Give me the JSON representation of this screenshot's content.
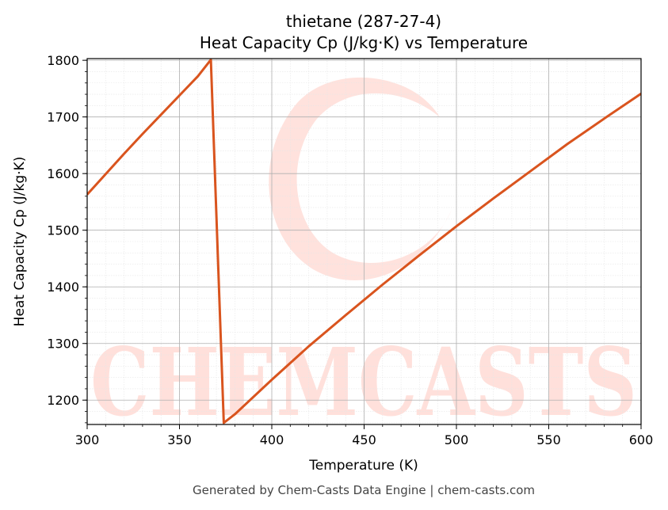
{
  "chart_data": {
    "type": "line",
    "title": "thietane (287-27-4)",
    "subtitle": "Heat Capacity Cp (J/kg·K) vs Temperature",
    "xlabel": "Temperature (K)",
    "ylabel": "Heat Capacity Cp (J/kg·K)",
    "xlim": [
      300,
      600
    ],
    "ylim": [
      1157,
      1803
    ],
    "xticks": [
      300,
      350,
      400,
      450,
      500,
      550,
      600
    ],
    "yticks": [
      1200,
      1300,
      1400,
      1500,
      1600,
      1700,
      1800
    ],
    "grid": true,
    "series": [
      {
        "color": "#d9541e",
        "x": [
          300,
          310,
          320,
          330,
          340,
          350,
          360,
          367,
          374,
          380,
          400,
          420,
          440,
          460,
          480,
          500,
          520,
          540,
          560,
          580,
          600
        ],
        "y": [
          1563,
          1599,
          1635,
          1670,
          1704,
          1738,
          1772,
          1801,
          1160,
          1175,
          1236,
          1295,
          1350,
          1404,
          1456,
          1507,
          1556,
          1604,
          1652,
          1697,
          1741
        ]
      }
    ]
  },
  "watermark": {
    "text": "CHEMCASTS"
  },
  "footer": "Generated by Chem-Casts Data Engine | chem-casts.com"
}
